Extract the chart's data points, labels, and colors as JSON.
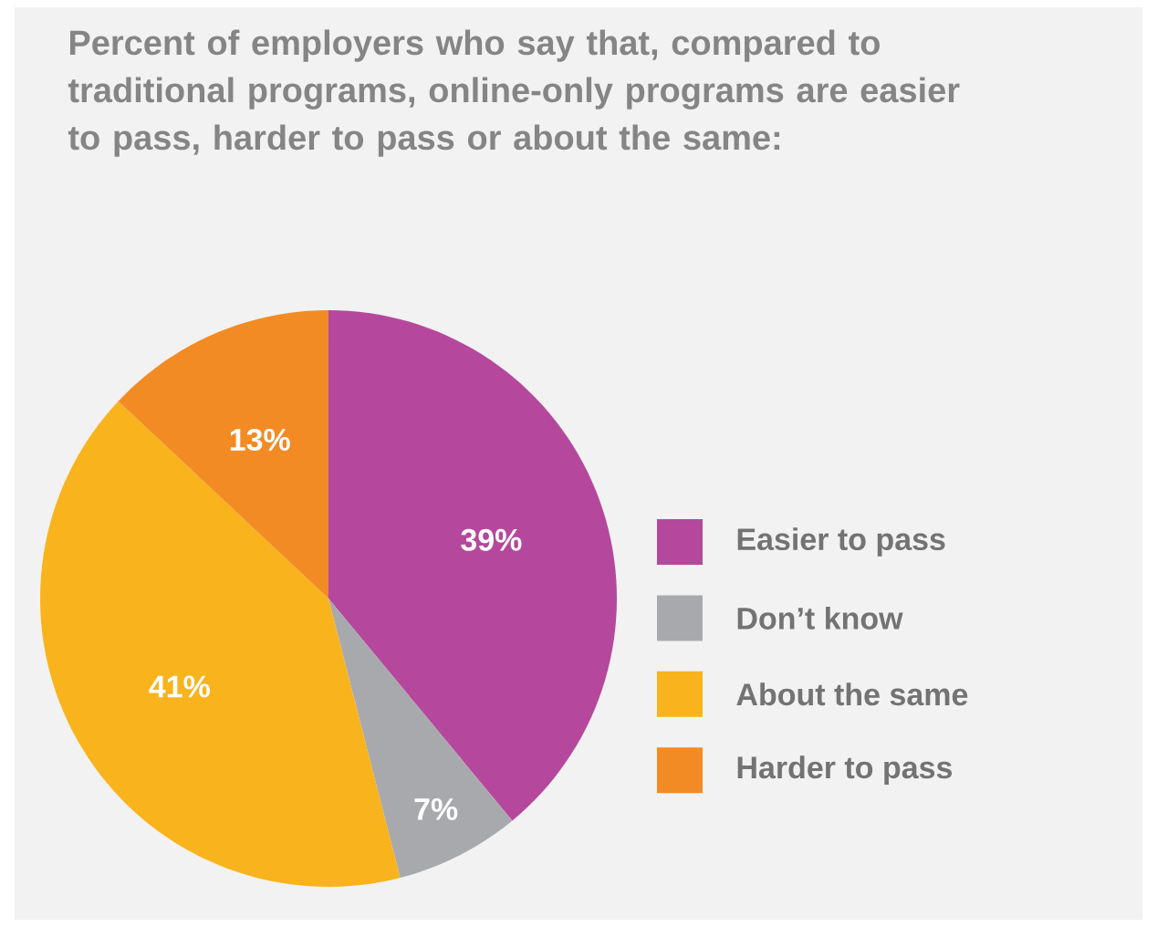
{
  "chart_data": {
    "type": "pie",
    "title": "Percent of employers who say that, compared to traditional programs, online-only programs are easier to pass, harder to pass or about the same:",
    "categories": [
      "Easier to pass",
      "Don’t know",
      "About the same",
      "Harder to pass"
    ],
    "values": [
      39,
      7,
      41,
      13
    ],
    "value_labels": [
      "39%",
      "7%",
      "41%",
      "13%"
    ],
    "colors": [
      "#b5489c",
      "#a8a9ad",
      "#f9b31c",
      "#f38b25"
    ],
    "legend": "right"
  }
}
